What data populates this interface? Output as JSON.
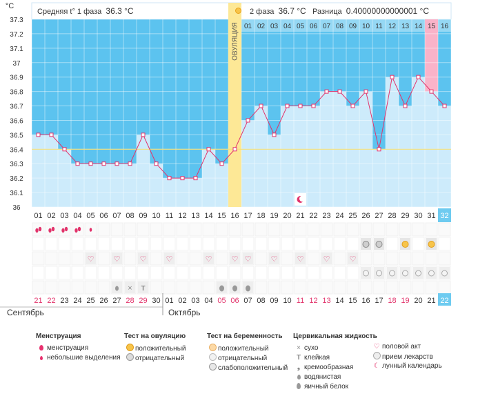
{
  "header": {
    "y_unit": "°C",
    "phase1_label": "Средняя t° 1 фаза",
    "phase1_value": "36.3 °C",
    "phase2_label": "2 фаза",
    "phase2_value": "36.7 °C",
    "diff_label": "Разница",
    "diff_value": "0.40000000000001 °C"
  },
  "chart_data": {
    "type": "line",
    "ylabel": "°C",
    "ylim": [
      36.0,
      37.3
    ],
    "yticks": [
      "37.3",
      "37.2",
      "37.1",
      "37",
      "36.9",
      "36.8",
      "36.7",
      "36.6",
      "36.5",
      "36.4",
      "36.3",
      "36.2",
      "36.1",
      "36"
    ],
    "ovulation_label": "ОВУЛЯЦИЯ",
    "ovulation_day": 16,
    "coverline": 36.4,
    "day_labels": [
      "01",
      "02",
      "03",
      "04",
      "05",
      "06",
      "07",
      "08",
      "09",
      "10",
      "11",
      "12",
      "13",
      "14",
      "15",
      "16",
      "17",
      "18",
      "19",
      "20",
      "21",
      "22",
      "23",
      "24",
      "25",
      "26",
      "27",
      "28",
      "29",
      "30",
      "31",
      "32"
    ],
    "phase2_day_labels": [
      "01",
      "02",
      "03",
      "04",
      "05",
      "06",
      "07",
      "08",
      "09",
      "10",
      "11",
      "12",
      "13",
      "14",
      "15",
      "16"
    ],
    "series": [
      {
        "values": [
          36.5,
          36.5,
          36.4,
          36.3,
          36.3,
          36.3,
          36.3,
          36.3,
          36.5,
          36.3,
          36.2,
          36.2,
          36.2,
          36.4,
          36.3,
          36.4,
          36.6,
          36.7,
          36.5,
          36.7,
          36.7,
          36.7,
          36.8,
          36.8,
          36.7,
          36.8,
          36.4,
          36.9,
          36.7,
          36.9,
          36.8,
          36.7
        ]
      }
    ],
    "date_labels": [
      "21",
      "22",
      "23",
      "24",
      "25",
      "26",
      "27",
      "28",
      "29",
      "30",
      "01",
      "02",
      "03",
      "04",
      "05",
      "06",
      "07",
      "08",
      "09",
      "10",
      "11",
      "12",
      "13",
      "14",
      "15",
      "16",
      "17",
      "18",
      "19",
      "20",
      "21",
      "22"
    ],
    "red_date_indices": [
      0,
      1,
      7,
      8,
      14,
      15,
      20,
      21,
      22,
      27,
      28
    ],
    "months": [
      "Сентябрь",
      "Октябрь"
    ]
  },
  "markers": {
    "menstruation_big": [
      1,
      2,
      3,
      4
    ],
    "menstruation_small": [
      5
    ],
    "ovulation_test_negative": [
      26,
      27
    ],
    "ovulation_test_positive": [
      29,
      31
    ],
    "sex": [
      5,
      7,
      9,
      11,
      14,
      16,
      17,
      19,
      21,
      23,
      25
    ],
    "medication": [
      26,
      27,
      28,
      29,
      30,
      31,
      32
    ],
    "cervical_egg_white_days": [
      15,
      16,
      17
    ],
    "cervical_dry_day": 8,
    "cervical_sticky_day": 9,
    "cervical_watery_day": 7,
    "moon_day": 21
  },
  "legend": {
    "menstruation": {
      "title": "Менструация",
      "items": [
        "менструация",
        "небольшие выделения"
      ]
    },
    "ovulation_test": {
      "title": "Тест на овуляцию",
      "items": [
        "положительный",
        "отрицательный"
      ]
    },
    "pregnancy_test": {
      "title": "Тест на беременность",
      "items": [
        "положительный",
        "отрицательный",
        "слабоположительный"
      ]
    },
    "cervical": {
      "title": "Цервикальная жидкость",
      "items": [
        "сухо",
        "клейкая",
        "кремообразная",
        "водянистая",
        "яичный белок"
      ]
    },
    "other": {
      "items": [
        "половой акт",
        "прием лекарств",
        "лунный календарь"
      ]
    }
  },
  "colors": {
    "phase_bg": "#5cc3ef",
    "bar": "#cdebfb",
    "line": "#e2336b",
    "ovulation_band": "#fde896",
    "highlight_pink": "#f9b3c9",
    "day32_bg": "#6ecbf0"
  }
}
